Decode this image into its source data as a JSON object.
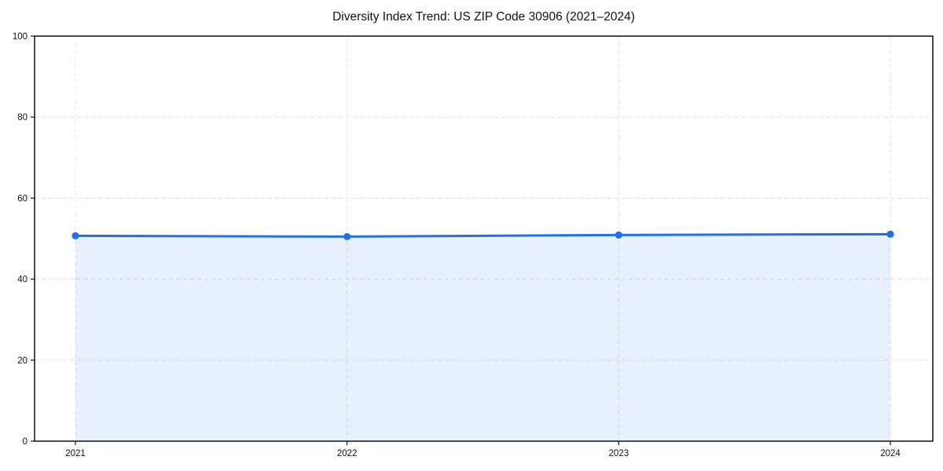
{
  "chart_data": {
    "type": "area",
    "title": "Diversity Index Trend: US ZIP Code 30906 (2021–2024)",
    "categories": [
      "2021",
      "2022",
      "2023",
      "2024"
    ],
    "series": [
      {
        "name": "Diversity Index",
        "values": [
          50.7,
          50.5,
          50.9,
          51.1
        ]
      }
    ],
    "xlabel": "",
    "ylabel": "",
    "ylim": [
      0,
      100
    ],
    "yticks": [
      0,
      20,
      40,
      60,
      80,
      100
    ],
    "grid": true,
    "grid_style": "dashed",
    "legend": "none",
    "colors": {
      "line": "#2070e8",
      "marker": "#2070e8",
      "fill": "rgba(32,112,232,0.10)",
      "grid": "#e1e1e1",
      "spine": "#111111",
      "tick": "#111111",
      "background": "#ffffff"
    }
  }
}
